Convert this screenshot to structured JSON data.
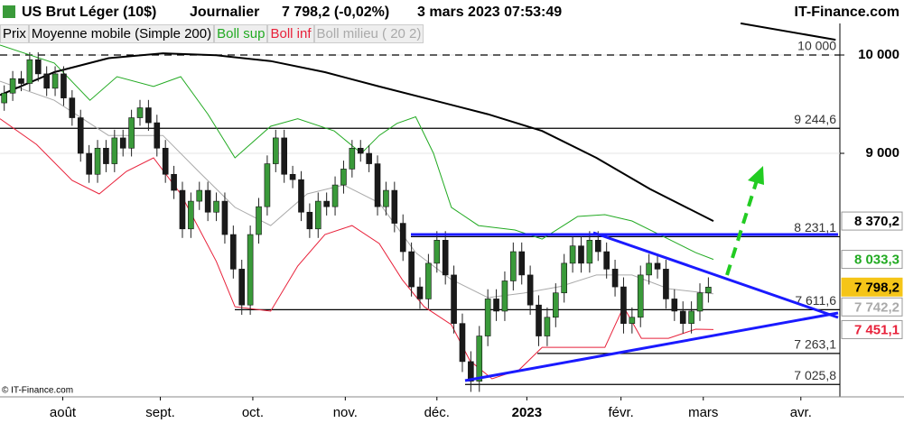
{
  "header": {
    "instrument": "US Brut Léger (10$)",
    "period": "Journalier",
    "price": "7 798,2 (-0,02%)",
    "datetime": "3 mars 2023 07:53:49",
    "site": "IT-Finance.com"
  },
  "footer": "© IT-Finance.com",
  "chart_data": {
    "type": "candlestick",
    "log_scale": true,
    "xlim": [
      0,
      99
    ],
    "ylim": [
      6933,
      10344
    ],
    "xticks": [
      {
        "value": 7.4,
        "label": "août"
      },
      {
        "value": 18.9,
        "label": "sept."
      },
      {
        "value": 29.8,
        "label": "oct."
      },
      {
        "value": 40.7,
        "label": "nov."
      },
      {
        "value": 51.5,
        "label": "déc."
      },
      {
        "value": 62.1,
        "label": "2023"
      },
      {
        "value": 73.2,
        "label": "févr."
      },
      {
        "value": 82.9,
        "label": "mars"
      },
      {
        "value": 94.4,
        "label": "avr."
      }
    ],
    "yticks": [
      {
        "value": 10000,
        "label": "10 000"
      },
      {
        "value": 9000,
        "label": "9 000"
      }
    ],
    "grid": true,
    "candles": {
      "name": "Prix",
      "color": "#000000",
      "up_color": "#3a9a3a",
      "down_color": "#1a1a1a",
      "open": [
        9500,
        9600,
        9750,
        9700,
        9950,
        9800,
        9650,
        9800,
        9550,
        9350,
        9000,
        8800,
        9050,
        8900,
        9150,
        9050,
        9350,
        9450,
        9300,
        9050,
        8800,
        8650,
        8300,
        8550,
        8650,
        8450,
        8550,
        8250,
        7950,
        7650,
        8250,
        8500,
        8900,
        9150,
        8800,
        8750,
        8450,
        8300,
        8550,
        8500,
        8700,
        8850,
        9050,
        9000,
        8900,
        8500,
        8650,
        8350,
        8100,
        7800,
        7700,
        8000,
        8200,
        7900,
        7500,
        7200,
        7050,
        7400,
        7700,
        7600,
        7850,
        8100,
        7900,
        7650,
        7400,
        7550,
        7750,
        8000,
        8150,
        8000,
        8200,
        8100,
        7950,
        7800,
        7500,
        7550,
        7900,
        8000,
        7950,
        7700,
        7600,
        7500,
        7600,
        7750
      ],
      "high": [
        9680,
        9830,
        9830,
        10030,
        10030,
        9880,
        9880,
        9880,
        9630,
        9430,
        9080,
        9130,
        9130,
        9230,
        9230,
        9430,
        9530,
        9530,
        9380,
        9130,
        8880,
        8730,
        8630,
        8730,
        8730,
        8630,
        8630,
        8330,
        8030,
        8330,
        8580,
        8980,
        9230,
        9230,
        8880,
        8830,
        8530,
        8630,
        8630,
        8780,
        8930,
        9130,
        9130,
        9080,
        8980,
        8730,
        8730,
        8430,
        8180,
        7880,
        8080,
        8280,
        8280,
        7980,
        7580,
        7280,
        7480,
        7780,
        7780,
        7930,
        8180,
        8180,
        7980,
        7730,
        7630,
        7830,
        8080,
        8230,
        8230,
        8280,
        8280,
        8180,
        8030,
        7880,
        7630,
        7980,
        8080,
        8080,
        8030,
        7780,
        7680,
        7680,
        7830,
        7880
      ],
      "low": [
        9420,
        9520,
        9620,
        9620,
        9720,
        9570,
        9570,
        9470,
        9270,
        8920,
        8720,
        8720,
        8820,
        8820,
        8970,
        8970,
        9270,
        9220,
        8970,
        8720,
        8570,
        8220,
        8220,
        8470,
        8370,
        8370,
        8170,
        7870,
        7570,
        7570,
        8170,
        8420,
        8820,
        8720,
        8670,
        8370,
        8220,
        8220,
        8420,
        8420,
        8620,
        8770,
        8920,
        8820,
        8420,
        8420,
        8270,
        8020,
        7720,
        7620,
        7620,
        7920,
        7820,
        7420,
        7120,
        6970,
        6970,
        7320,
        7520,
        7520,
        7770,
        7820,
        7570,
        7320,
        7320,
        7470,
        7670,
        7920,
        7920,
        7920,
        8020,
        7870,
        7720,
        7420,
        7420,
        7470,
        7820,
        7870,
        7620,
        7520,
        7420,
        7420,
        7520,
        7670
      ],
      "close": [
        9600,
        9750,
        9700,
        9950,
        9800,
        9650,
        9800,
        9550,
        9350,
        9000,
        8800,
        9050,
        8900,
        9150,
        9050,
        9350,
        9450,
        9300,
        9050,
        8800,
        8650,
        8300,
        8550,
        8650,
        8450,
        8550,
        8250,
        7950,
        7650,
        8250,
        8500,
        8900,
        9150,
        8800,
        8750,
        8450,
        8300,
        8550,
        8500,
        8700,
        8850,
        9050,
        9000,
        8900,
        8500,
        8650,
        8350,
        8100,
        7800,
        7700,
        8000,
        8200,
        7900,
        7500,
        7200,
        7050,
        7400,
        7700,
        7600,
        7850,
        8100,
        7900,
        7650,
        7400,
        7550,
        7750,
        8000,
        8150,
        8000,
        8200,
        8100,
        7950,
        7800,
        7500,
        7550,
        7900,
        8000,
        7950,
        7700,
        7600,
        7500,
        7600,
        7750,
        7798.2
      ],
      "last": {
        "value": 7798.2,
        "label": "7 798,2"
      }
    },
    "series": [
      {
        "name": "Moyenne mobile (Simple 200)",
        "color": "#000000",
        "width": 2,
        "x": [
          0,
          6.4,
          12.8,
          19.2,
          25.5,
          31.9,
          38.3,
          44.7,
          51.1,
          57.5,
          63.9,
          70.3,
          76.6,
          84.1,
          85.7,
          87.3,
          98.5
        ],
        "values": [
          9580,
          9818,
          9966,
          10018,
          9997,
          9935,
          9818,
          9668,
          9526,
          9386,
          9218,
          8957,
          8663,
          8370.2,
          null,
          10345,
          10165
        ],
        "last": {
          "value": 8370.2,
          "label": "8 370,2"
        }
      },
      {
        "name": "Boll sup",
        "color": "#22aa22",
        "width": 1,
        "x": [
          0,
          6.4,
          10.6,
          13.8,
          18.1,
          21.3,
          24.5,
          27.7,
          31.9,
          35.1,
          39.4,
          42.6,
          44.7,
          46.8,
          49,
          51.1,
          53.2,
          56.4,
          60.7,
          63.9,
          68.1,
          71.3,
          74.5,
          78.8,
          82,
          84.1
        ],
        "values": [
          10107,
          9914,
          9526,
          9771,
          9668,
          9771,
          9386,
          8957,
          9265,
          9340,
          9218,
          9000,
          9174,
          9294,
          9359,
          9000,
          8494,
          8330,
          8290,
          8210,
          8411,
          8428,
          8371,
          8210,
          8092,
          8033.3
        ],
        "last": {
          "value": 8033.3,
          "label": "8 033,3"
        }
      },
      {
        "name": "Boll inf",
        "color": "#e8213a",
        "width": 1,
        "x": [
          0,
          4.3,
          8.5,
          11.7,
          14.9,
          18.1,
          21.3,
          25.5,
          27.7,
          31.9,
          35.1,
          38.3,
          41.5,
          44.7,
          47.4,
          50,
          53.2,
          55.4,
          58,
          61.2,
          63.9,
          68.1,
          71.3,
          73.5,
          75.6,
          78.8,
          82,
          84.1
        ],
        "values": [
          9340,
          9087,
          8743,
          8617,
          8828,
          8957,
          8617,
          8016,
          7636,
          7600,
          7977,
          8250,
          8330,
          8171,
          7862,
          7636,
          7490,
          7206,
          7068,
          7137,
          7311,
          7311,
          7311,
          7636,
          7382,
          7382,
          7454,
          7451.1
        ],
        "last": {
          "value": 7451.1,
          "label": "7 451,1"
        }
      },
      {
        "name": "Boll milieu ( 20 2)",
        "color": "#aaaaaa",
        "width": 1,
        "x": [
          0,
          6.4,
          12.8,
          19.2,
          23.4,
          27.7,
          31.9,
          36.2,
          40.5,
          44.7,
          49,
          53.2,
          57.5,
          61.7,
          66,
          70.3,
          74.5,
          78.8,
          84.1
        ],
        "values": [
          9723,
          9526,
          9174,
          9174,
          8828,
          8494,
          8330,
          8617,
          8700,
          8535,
          8092,
          7862,
          7711,
          7748,
          7802,
          7900,
          7900,
          7785,
          7742.2
        ],
        "last": {
          "value": 7742.2,
          "label": "7 742,2"
        }
      }
    ],
    "levels": [
      {
        "value": 10000,
        "label": "10 000",
        "style": "dashed"
      },
      {
        "value": 9244.6,
        "label": "9 244,6",
        "style": "solid"
      },
      {
        "value": 8231.1,
        "label": "8 231,1",
        "style": "solid"
      },
      {
        "value": 7611.6,
        "label": "7 611,6",
        "style": "solid"
      },
      {
        "value": 7263.1,
        "label": "7 263,1",
        "style": "solid"
      },
      {
        "value": 7025.8,
        "label": "7 025,8",
        "style": "solid"
      }
    ]
  }
}
